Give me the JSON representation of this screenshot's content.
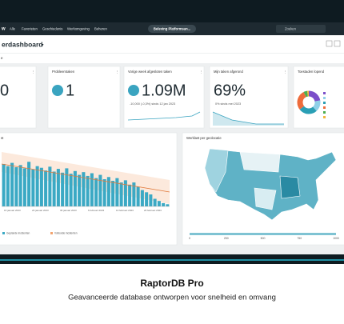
{
  "nav": {
    "logo": "w",
    "items": [
      "Alle",
      "Favorieten",
      "Geschiedenis",
      "Werkomgeving",
      "Beheren"
    ],
    "workspace": "Beleving Platformsan...",
    "search": "Zoeken"
  },
  "header": {
    "title": "erdashboard"
  },
  "tab": "e",
  "cards": [
    {
      "value": "0"
    },
    {
      "title": "Probleemtaken",
      "value": "1"
    },
    {
      "title": "Vorige week afgesloten taken",
      "value": "1.09M",
      "delta": "-10,000 (-0,3%) sinds 12 jan 2023"
    },
    {
      "title": "Mijn taken afgerond",
      "value": "69%",
      "delta": "0% sinds mei 2023"
    },
    {
      "title": "Toestaden lopend"
    }
  ],
  "donut": {
    "type": "pie",
    "values": [
      22,
      16,
      26,
      28,
      5,
      3
    ],
    "colors": [
      "#7b4fc9",
      "#8fd0e8",
      "#2a9fb5",
      "#ee6b3b",
      "#4cae4f",
      "#f2b63c"
    ]
  },
  "bar_chart": {
    "type": "bar",
    "title": "st",
    "color": "#3ba9c4",
    "ylim": [
      0,
      100
    ],
    "values": [
      78,
      74,
      80,
      72,
      76,
      70,
      82,
      68,
      74,
      71,
      66,
      73,
      64,
      69,
      62,
      70,
      60,
      65,
      58,
      63,
      56,
      61,
      52,
      58,
      50,
      54,
      47,
      52,
      44,
      48,
      40,
      44,
      36,
      30,
      26,
      22,
      14,
      10,
      6,
      4
    ],
    "dates": [
      "16 januari 2023",
      "23 januari 2023",
      "30 januari 2023",
      "6 februari 2023",
      "13 februari 2023",
      "20 februari 2023"
    ],
    "legend": [
      "Geplande incidenten",
      "Voltooide incidenten"
    ]
  },
  "map": {
    "title": "Werklast per geolocatie",
    "legend_ticks": [
      0,
      250,
      500,
      750,
      1000
    ]
  },
  "caption": {
    "title": "RaptorDB Pro",
    "subtitle": "Geavanceerde database ontworpen voor snelheid en omvang"
  }
}
